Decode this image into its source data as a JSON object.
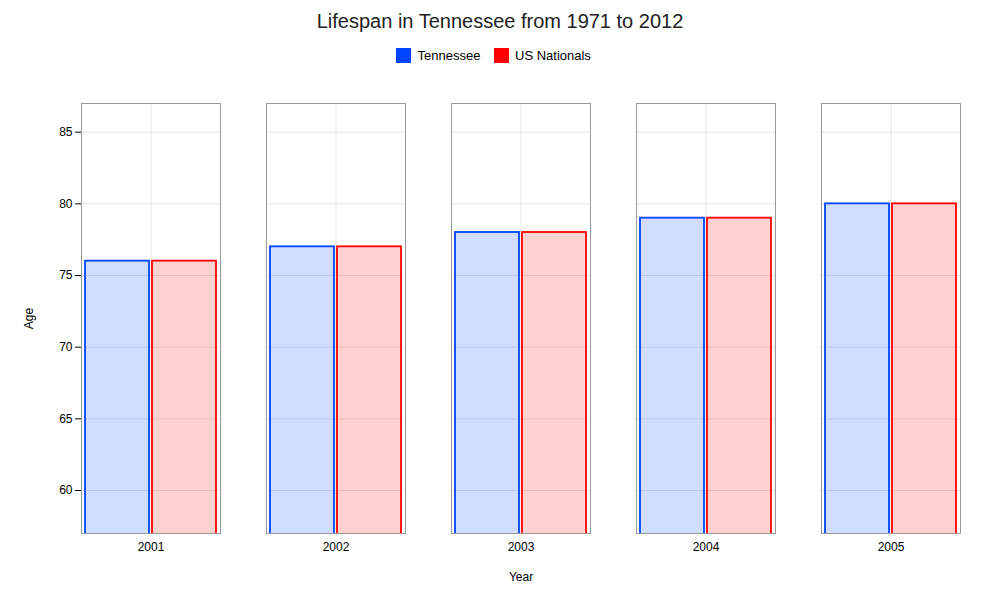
{
  "chart_data": {
    "type": "bar",
    "title": "Lifespan in Tennessee from 1971 to 2012",
    "xlabel": "Year",
    "ylabel": "Age",
    "categories": [
      "2001",
      "2002",
      "2003",
      "2004",
      "2005"
    ],
    "series": [
      {
        "name": "Tennessee",
        "color": "#0044FF",
        "values": [
          76,
          77,
          78,
          79,
          80
        ]
      },
      {
        "name": "US Nationals",
        "color": "#FF0000",
        "values": [
          76,
          77,
          78,
          79,
          80
        ]
      }
    ],
    "ylim": [
      57,
      87
    ],
    "yticks": [
      60,
      65,
      70,
      75,
      80,
      85
    ],
    "grid": true,
    "legend": "top"
  }
}
